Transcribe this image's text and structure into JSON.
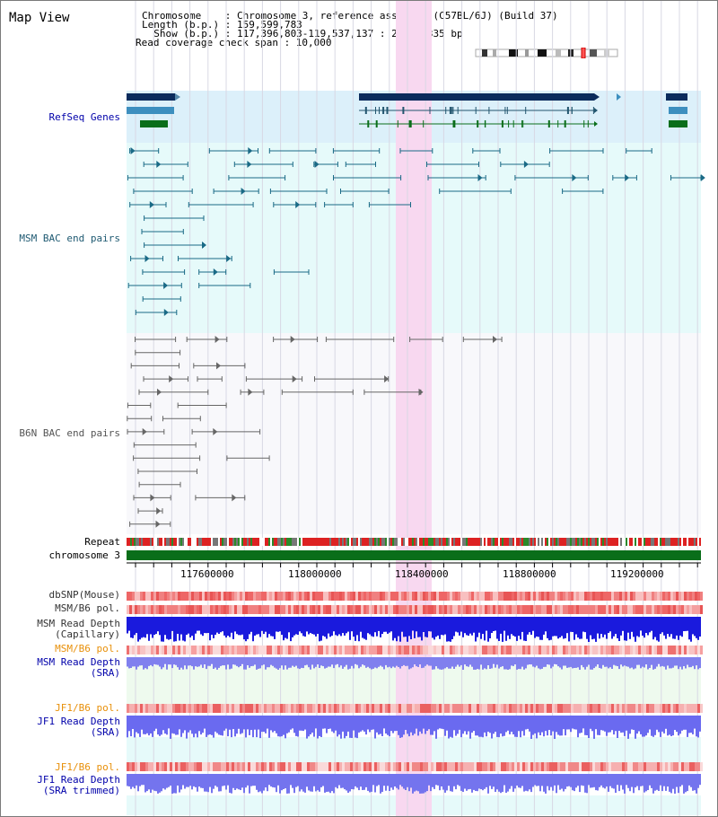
{
  "title": "Map View",
  "header": {
    "line1": "Chromosome    : Chromosome 3, reference assembly (C57BL/6J) (Build 37)",
    "line2": "Length (b.p.) : 159,599,783",
    "line3": "  Show (b.p.) : 117,396,803-119,537,137 : 2,140,335 bp",
    "line4": "Read coverage check span : 10,000"
  },
  "tracks": {
    "refseq": "RefSeq Genes",
    "msm_bac": "MSM BAC end pairs",
    "b6n_bac": "B6N BAC end pairs",
    "repeat": "Repeat",
    "chromosome": "chromosome 3",
    "dbsnp": "dbSNP(Mouse)",
    "msm_b6_pol": "MSM/B6 pol.",
    "msm_read_depth_cap_1": "MSM Read Depth",
    "msm_read_depth_cap_2": "(Capillary)",
    "msm_b6_pol_sra": "MSM/B6 pol.",
    "msm_read_depth_sra_1": "MSM Read Depth",
    "msm_read_depth_sra_2": "(SRA)",
    "jf1_b6_pol_1": "JF1/B6 pol.",
    "jf1_read_depth_sra_1": "JF1 Read Depth",
    "jf1_read_depth_sra_2": "(SRA)",
    "jf1_b6_pol_2": "JF1/B6 pol.",
    "jf1_read_depth_trim_1": "JF1 Read Depth",
    "jf1_read_depth_trim_2": "(SRA trimmed)"
  },
  "axis": {
    "ticks": [
      "117600000",
      "118000000",
      "118400000",
      "118800000",
      "119200000"
    ]
  },
  "colors": {
    "label_blue": "#00008b",
    "label_teal": "#22556e",
    "label_orange": "#e8900a",
    "gene_navy": "#0b2b5c",
    "highlight": "#f8d8f0"
  }
}
